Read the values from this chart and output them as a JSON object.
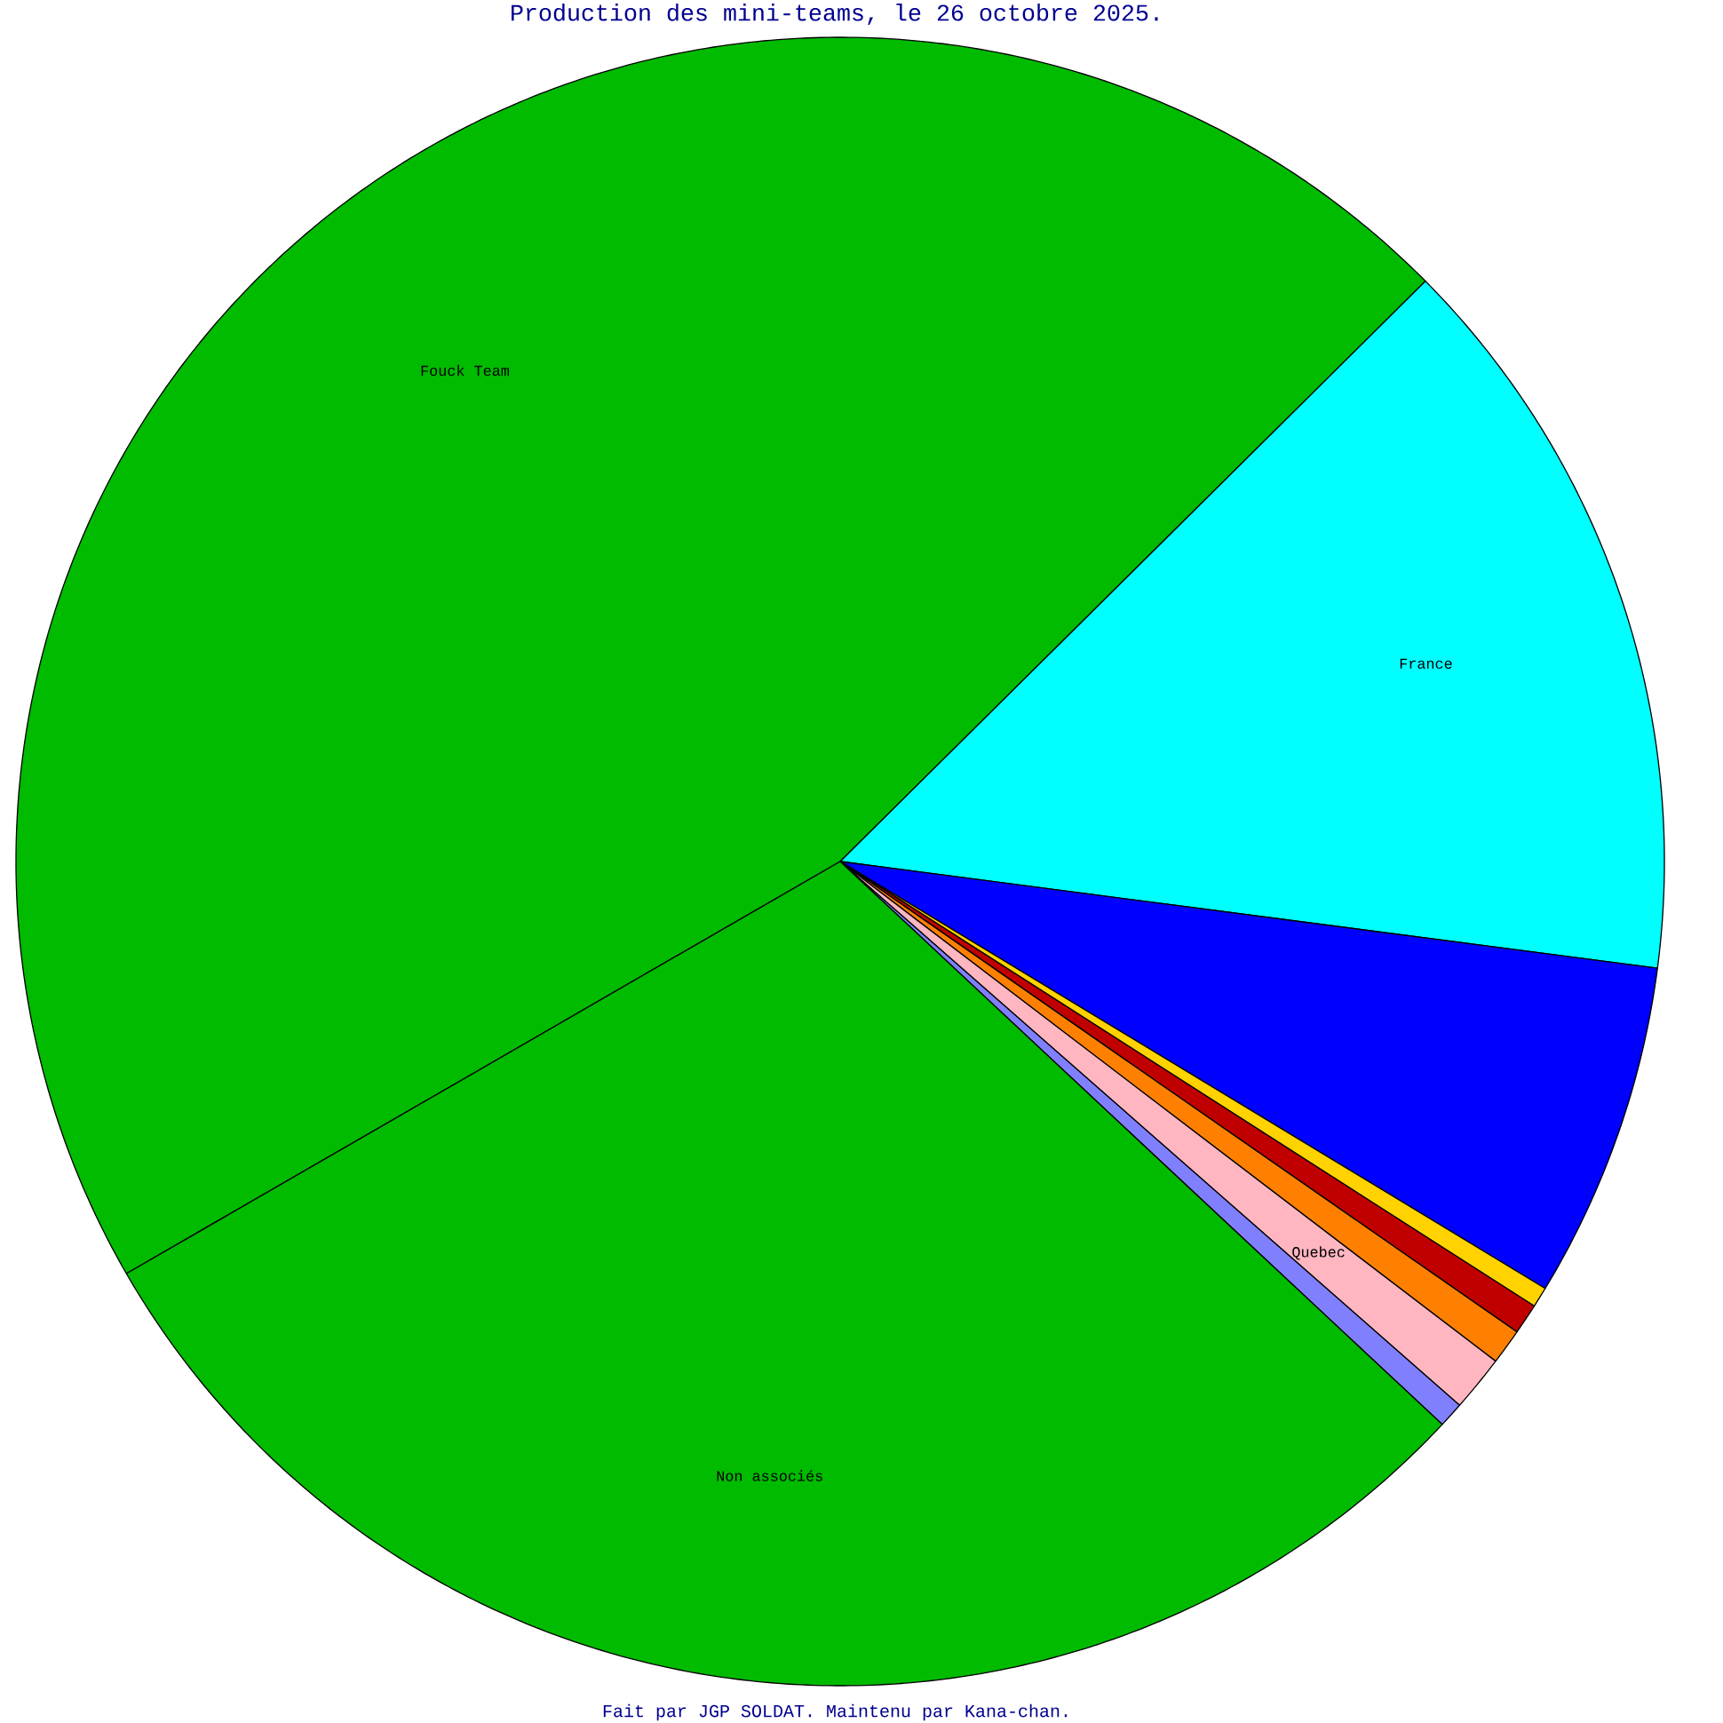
{
  "chart_data": {
    "type": "pie",
    "title": "Production des mini-teams, le 26 octobre 2025.",
    "annotations": [
      "Fait par JGP SOLDAT. Maintenu par Kana-chan."
    ],
    "categories": [
      "Fouck Team",
      "France",
      null,
      null,
      null,
      null,
      "Quebec",
      null,
      "Non associés"
    ],
    "values": [
      45.9,
      14.5,
      6.6,
      0.4,
      0.6,
      0.7,
      1.1,
      0.5,
      29.7
    ],
    "colors": [
      "#00bb00",
      "#00ffff",
      "#0000ff",
      "#ffd200",
      "#c00000",
      "#ff8000",
      "#ffb6c1",
      "#8080ff",
      "#00bb00"
    ]
  }
}
